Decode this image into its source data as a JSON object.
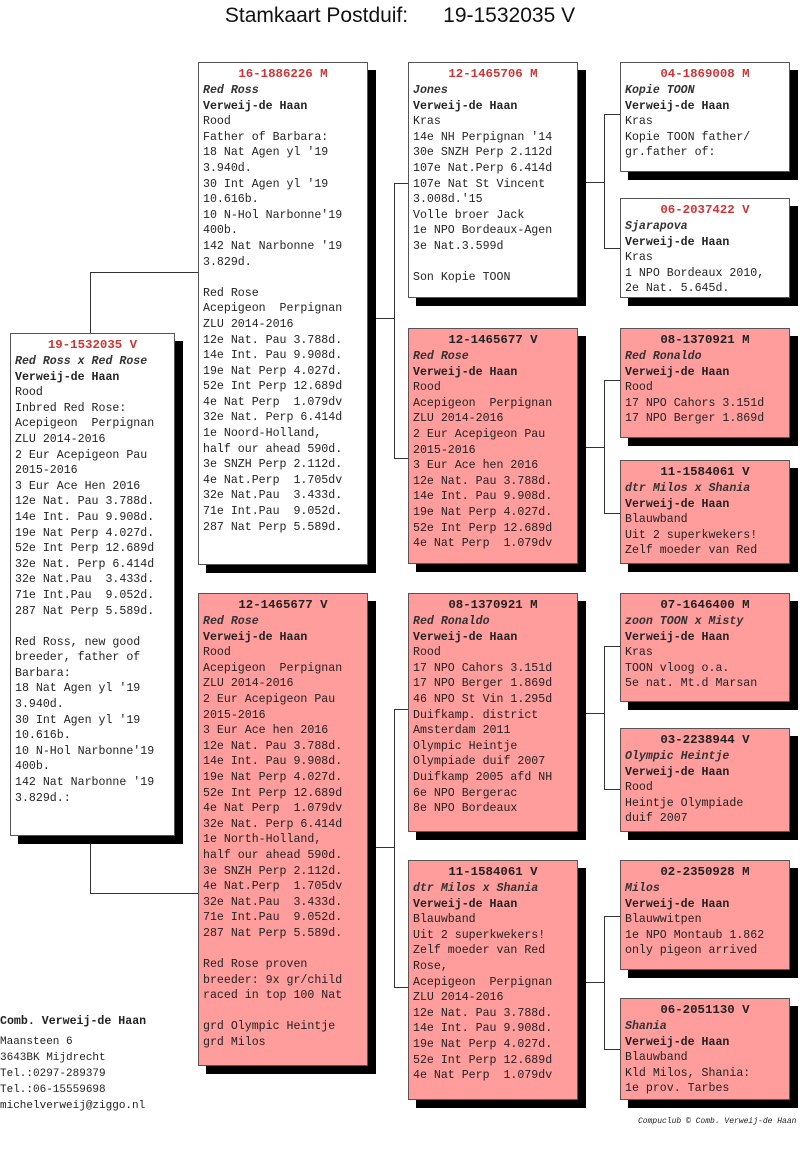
{
  "title": "Stamkaart Postduif:      19-1532035 V",
  "colors": {
    "pink_box": "#ff9c9c",
    "white_box": "#ffffff",
    "ring_red": "#d03434"
  },
  "boxes": {
    "main": {
      "ring": "19-1532035 V",
      "ring_color": "red",
      "name": "Red Ross x Red Rose",
      "owner": "Verweij-de Haan",
      "color": "Rood",
      "pink": false,
      "lines": [
        "Inbred Red Rose:",
        "Acepigeon  Perpignan",
        "ZLU 2014-2016",
        "2 Eur Acepigeon Pau",
        "2015-2016",
        "3 Eur Ace Hen 2016",
        "12e Nat. Pau 3.788d.",
        "14e Int. Pau 9.908d.",
        "19e Nat Perp 4.027d.",
        "52e Int Perp 12.689d",
        "32e Nat. Perp 6.414d",
        "32e Nat.Pau  3.433d.",
        "71e Int.Pau  9.052d.",
        "287 Nat Perp 5.589d.",
        "",
        "Red Ross, new good",
        "breeder, father of",
        "Barbara:",
        "18 Nat Agen yl '19",
        "3.940d.",
        "30 Int Agen yl '19",
        "10.616b.",
        "10 N-Hol Narbonne'19",
        "400b.",
        "142 Nat Narbonne '19",
        "3.829d.:"
      ]
    },
    "father": {
      "ring": "16-1886226 M",
      "ring_color": "red",
      "name": "Red Ross",
      "owner": "Verweij-de Haan",
      "color": "Rood",
      "pink": false,
      "lines": [
        "Father of Barbara:",
        "18 Nat Agen yl '19",
        "3.940d.",
        "30 Int Agen yl '19",
        "10.616b.",
        "10 N-Hol Narbonne'19",
        "400b.",
        "142 Nat Narbonne '19",
        "3.829d.",
        "",
        "Red Rose",
        "Acepigeon  Perpignan",
        "ZLU 2014-2016",
        "12e Nat. Pau 3.788d.",
        "14e Int. Pau 9.908d.",
        "19e Nat Perp 4.027d.",
        "52e Int Perp 12.689d",
        "4e Nat Perp  1.079dv",
        "32e Nat. Perp 6.414d",
        "1e Noord-Holland,",
        "half our ahead 590d.",
        "3e SNZH Perp 2.112d.",
        "4e Nat.Perp  1.705dv",
        "32e Nat.Pau  3.433d.",
        "71e Int.Pau  9.052d.",
        "287 Nat Perp 5.589d."
      ]
    },
    "mother": {
      "ring": "12-1465677 V",
      "ring_color": "dark",
      "name": "Red Rose",
      "owner": "Verweij-de Haan",
      "color": "Rood",
      "pink": true,
      "lines": [
        "Acepigeon  Perpignan",
        "ZLU 2014-2016",
        "2 Eur Acepigeon Pau",
        "2015-2016",
        "3 Eur Ace hen 2016",
        "12e Nat. Pau 3.788d.",
        "14e Int. Pau 9.908d.",
        "19e Nat Perp 4.027d.",
        "52e Int Perp 12.689d",
        "4e Nat Perp  1.079dv",
        "32e Nat. Perp 6.414d",
        "1e North-Holland,",
        "half our ahead 590d.",
        "3e SNZH Perp 2.112d.",
        "4e Nat.Perp  1.705dv",
        "32e Nat.Pau  3.433d.",
        "71e Int.Pau  9.052d.",
        "287 Nat Perp 5.589d.",
        "",
        "Red Rose proven",
        "breeder: 9x gr/child",
        "raced in top 100 Nat",
        "",
        "grd Olympic Heintje",
        "grd Milos"
      ]
    },
    "ff": {
      "ring": "12-1465706 M",
      "ring_color": "red",
      "name": "Jones",
      "owner": "Verweij-de Haan",
      "color": "Kras",
      "pink": false,
      "lines": [
        "14e NH Perpignan '14",
        "30e SNZH Perp 2.112d",
        "107e Nat.Perp 6.414d",
        "107e Nat St Vincent",
        "3.008d.'15",
        "Volle broer Jack",
        "1e NPO Bordeaux-Agen",
        "3e Nat.3.599d",
        "",
        "Son Kopie TOON"
      ]
    },
    "fm": {
      "ring": "12-1465677 V",
      "ring_color": "dark",
      "name": "Red Rose",
      "owner": "Verweij-de Haan",
      "color": "Rood",
      "pink": true,
      "lines": [
        "Acepigeon  Perpignan",
        "ZLU 2014-2016",
        "2 Eur Acepigeon Pau",
        "2015-2016",
        "3 Eur Ace hen 2016",
        "12e Nat. Pau 3.788d.",
        "14e Int. Pau 9.908d.",
        "19e Nat Perp 4.027d.",
        "52e Int Perp 12.689d",
        "4e Nat Perp  1.079dv"
      ]
    },
    "mf": {
      "ring": "08-1370921 M",
      "ring_color": "dark",
      "name": "Red Ronaldo",
      "owner": "Verweij-de Haan",
      "color": "Rood",
      "pink": true,
      "lines": [
        "17 NPO Cahors 3.151d",
        "17 NPO Berger 1.869d",
        "46 NPO St Vin 1.295d",
        "Duifkamp. district",
        "Amsterdam 2011",
        "Olympic Heintje",
        "Olympiade duif 2007",
        "Duifkamp 2005 afd NH",
        "6e NPO Bergerac",
        "8e NPO Bordeaux"
      ]
    },
    "mm": {
      "ring": "11-1584061 V",
      "ring_color": "dark",
      "name": "dtr Milos x Shania",
      "owner": "Verweij-de Haan",
      "color": "Blauwband",
      "pink": true,
      "lines": [
        "Uit 2 superkwekers!",
        "Zelf moeder van Red",
        "Rose,",
        "Acepigeon  Perpignan",
        "ZLU 2014-2016",
        "12e Nat. Pau 3.788d.",
        "14e Int. Pau 9.908d.",
        "19e Nat Perp 4.027d.",
        "52e Int Perp 12.689d",
        "4e Nat Perp  1.079dv"
      ]
    },
    "fff": {
      "ring": "04-1869008 M",
      "ring_color": "red",
      "name": "Kopie TOON",
      "owner": "Verweij-de Haan",
      "color": "Kras",
      "pink": false,
      "lines": [
        "Kopie TOON father/",
        "gr.father of:"
      ]
    },
    "ffm": {
      "ring": "06-2037422 V",
      "ring_color": "red",
      "name": "Sjarapova",
      "owner": "Verweij-de Haan",
      "color": "Kras",
      "pink": false,
      "lines": [
        "1 NPO Bordeaux 2010,",
        "2e Nat. 5.645d."
      ]
    },
    "fmf": {
      "ring": "08-1370921 M",
      "ring_color": "dark",
      "name": "Red Ronaldo",
      "owner": "Verweij-de Haan",
      "color": "Rood",
      "pink": true,
      "lines": [
        "17 NPO Cahors 3.151d",
        "17 NPO Berger 1.869d"
      ]
    },
    "fmm": {
      "ring": "11-1584061 V",
      "ring_color": "dark",
      "name": "dtr Milos x Shania",
      "owner": "Verweij-de Haan",
      "color": "Blauwband",
      "pink": true,
      "lines": [
        "Uit 2 superkwekers!",
        "Zelf moeder van Red"
      ]
    },
    "mff": {
      "ring": "07-1646400 M",
      "ring_color": "dark",
      "name": "zoon TOON x Misty",
      "owner": "Verweij-de Haan",
      "color": "Kras",
      "pink": true,
      "lines": [
        "TOON vloog o.a.",
        "5e nat. Mt.d Marsan"
      ]
    },
    "mfm": {
      "ring": "03-2238944 V",
      "ring_color": "dark",
      "name": "Olympic Heintje",
      "owner": "Verweij-de Haan",
      "color": "Rood",
      "pink": true,
      "lines": [
        "Heintje Olympiade",
        "duif 2007"
      ]
    },
    "mmf": {
      "ring": "02-2350928 M",
      "ring_color": "dark",
      "name": "Milos",
      "owner": "Verweij-de Haan",
      "color": "Blauwwitpen",
      "pink": true,
      "lines": [
        "1e NPO Montaub 1.862",
        "only pigeon arrived"
      ]
    },
    "mmm": {
      "ring": "06-2051130 V",
      "ring_color": "dark",
      "name": "Shania",
      "owner": "Verweij-de Haan",
      "color": "Blauwband",
      "pink": true,
      "lines": [
        "Kld Milos, Shania:",
        "1e prov. Tarbes"
      ]
    }
  },
  "contact": {
    "name": "Comb. Verweij-de Haan",
    "street": "Maansteen 6",
    "city": "3643BK  Mijdrecht",
    "tel1": "Tel.:0297-289379",
    "tel2": "Tel.:06-15559698",
    "email": "michelverweij@ziggo.nl"
  },
  "footer": "Compuclub © Comb. Verweij-de Haan"
}
